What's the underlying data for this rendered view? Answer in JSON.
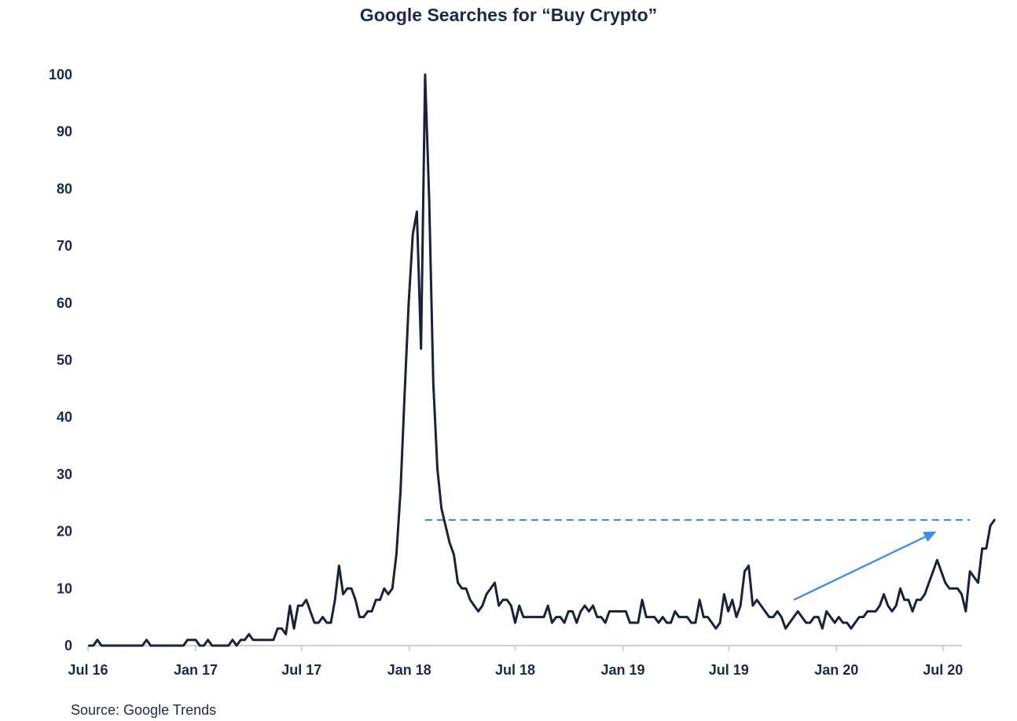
{
  "chart_data": {
    "type": "line",
    "title": "Google Searches for “Buy Crypto”",
    "source": "Source: Google Trends",
    "xlabel": "",
    "ylabel": "",
    "ylim": [
      0,
      100
    ],
    "yticks": [
      "0",
      "10",
      "20",
      "30",
      "40",
      "50",
      "60",
      "70",
      "80",
      "90",
      "100"
    ],
    "xticks": [
      "Jul 16",
      "Jan 17",
      "Jul 17",
      "Jan 18",
      "Jul 18",
      "Jan 19",
      "Jul 19",
      "Jan 20",
      "Jul 20"
    ],
    "x_start": "2016-07-03",
    "x_interval": "weekly",
    "grid": false,
    "legend": "none",
    "colors": {
      "line": "#17233b",
      "annotation": "#3d8ee8",
      "text": "#1b2a4a"
    },
    "reference_line": {
      "value": 22,
      "from": "2018-01-28",
      "to": "2020-08-16",
      "style": "dashed"
    },
    "trend_arrow": {
      "from": {
        "x": "2019-10-20",
        "y": 8
      },
      "to": {
        "x": "2020-06-20",
        "y": 20
      }
    },
    "series": [
      {
        "values": [
          0,
          0,
          1,
          0,
          0,
          0,
          0,
          0,
          0,
          0,
          0,
          0,
          0,
          0,
          1,
          0,
          0,
          0,
          0,
          0,
          0,
          0,
          0,
          0,
          1,
          1,
          1,
          0,
          0,
          1,
          0,
          0,
          0,
          0,
          0,
          1,
          0,
          1,
          1,
          2,
          1,
          1,
          1,
          1,
          1,
          1,
          3,
          3,
          2,
          7,
          3,
          7,
          7,
          8,
          6,
          4,
          4,
          5,
          4,
          4,
          8,
          14,
          9,
          10,
          10,
          8,
          5,
          5,
          6,
          6,
          8,
          8,
          10,
          9,
          10,
          16,
          27,
          44,
          60,
          72,
          76,
          52,
          100,
          78,
          46,
          31,
          24,
          21,
          18,
          16,
          11,
          10,
          10,
          8,
          7,
          6,
          7,
          9,
          10,
          11,
          7,
          8,
          8,
          7,
          4,
          7,
          5,
          5,
          5,
          5,
          5,
          5,
          7,
          4,
          5,
          5,
          4,
          6,
          6,
          4,
          6,
          7,
          6,
          7,
          5,
          5,
          4,
          6,
          6,
          6,
          6,
          6,
          4,
          4,
          4,
          8,
          5,
          5,
          5,
          4,
          5,
          4,
          4,
          6,
          5,
          5,
          5,
          4,
          4,
          8,
          5,
          5,
          4,
          3,
          4,
          9,
          6,
          8,
          5,
          7,
          13,
          14,
          7,
          8,
          7,
          6,
          5,
          5,
          6,
          5,
          3,
          4,
          5,
          6,
          5,
          4,
          4,
          5,
          5,
          3,
          6,
          5,
          4,
          5,
          4,
          4,
          3,
          4,
          5,
          5,
          6,
          6,
          6,
          7,
          9,
          7,
          6,
          7,
          10,
          8,
          8,
          6,
          8,
          8,
          9,
          11,
          13,
          15,
          13,
          11,
          10,
          10,
          10,
          9,
          6,
          13,
          12,
          11,
          17,
          17,
          21,
          22
        ]
      }
    ]
  }
}
